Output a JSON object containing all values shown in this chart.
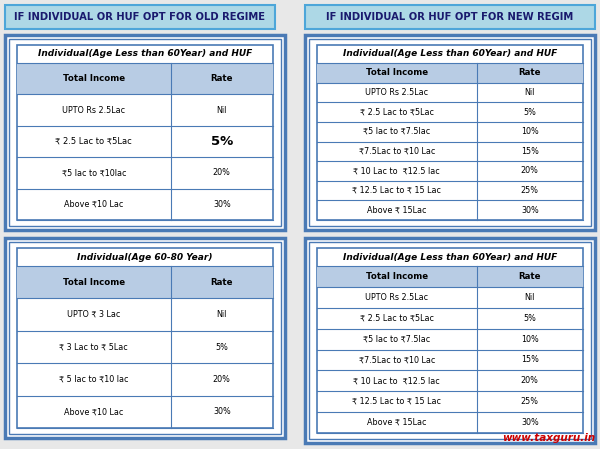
{
  "bg_color": "#e8e8e8",
  "header_left": "IF INDIVIDUAL OR HUF OPT FOR OLD REGIME",
  "header_right": "IF INDIVIDUAL OR HUF OPT FOR NEW REGIM",
  "header_bg": "#add8e6",
  "header_border": "#4da6d9",
  "header_text_color": "#1a1a6e",
  "outer_box_color": "#4a7ab5",
  "inner_box_color": "white",
  "table_header_bg": "#b8cce4",
  "table_line_color": "#4a7ab5",
  "watermark": "www.taxguru.in",
  "watermark_color": "#cc0000",
  "table1_title": "Individual(Age Less than 60Year) and HUF",
  "table1_headers": [
    "Total Income",
    "Rate"
  ],
  "table1_rows": [
    [
      "UPTO Rs 2.5Lac",
      "Nil"
    ],
    [
      "₹ 2.5 Lac to ₹5Lac",
      "5%"
    ],
    [
      "₹5 lac to ₹10lac",
      "20%"
    ],
    [
      "Above ₹10 Lac",
      "30%"
    ]
  ],
  "table1_bold_row": 1,
  "table2_title": "Individual(Age 60-80 Year)",
  "table2_headers": [
    "Total Income",
    "Rate"
  ],
  "table2_rows": [
    [
      "UPTO ₹ 3 Lac",
      "Nil"
    ],
    [
      "₹ 3 Lac to ₹ 5Lac",
      "5%"
    ],
    [
      "₹ 5 lac to ₹10 lac",
      "20%"
    ],
    [
      "Above ₹10 Lac",
      "30%"
    ]
  ],
  "table3_title": "Individual(Age Less than 60Year) and HUF",
  "table3_headers": [
    "Total Income",
    "Rate"
  ],
  "table3_rows": [
    [
      "UPTO Rs 2.5Lac",
      "Nil"
    ],
    [
      "₹ 2.5 Lac to ₹5Lac",
      "5%"
    ],
    [
      "₹5 lac to ₹7.5lac",
      "10%"
    ],
    [
      "₹7.5Lac to ₹10 Lac",
      "15%"
    ],
    [
      "₹ 10 Lac to  ₹12.5 lac",
      "20%"
    ],
    [
      "₹ 12.5 Lac to ₹ 15 Lac",
      "25%"
    ],
    [
      "Above ₹ 15Lac",
      "30%"
    ]
  ],
  "table4_title": "Individual(Age Less than 60Year) and HUF",
  "table4_headers": [
    "Total Income",
    "Rate"
  ],
  "table4_rows": [
    [
      "UPTO Rs 2.5Lac",
      "Nil"
    ],
    [
      "₹ 2.5 Lac to ₹5Lac",
      "5%"
    ],
    [
      "₹5 lac to ₹7.5lac",
      "10%"
    ],
    [
      "₹7.5Lac to ₹10 Lac",
      "15%"
    ],
    [
      "₹ 10 Lac to  ₹12.5 lac",
      "20%"
    ],
    [
      "₹ 12.5 Lac to ₹ 15 Lac",
      "25%"
    ],
    [
      "Above ₹ 15Lac",
      "30%"
    ]
  ]
}
